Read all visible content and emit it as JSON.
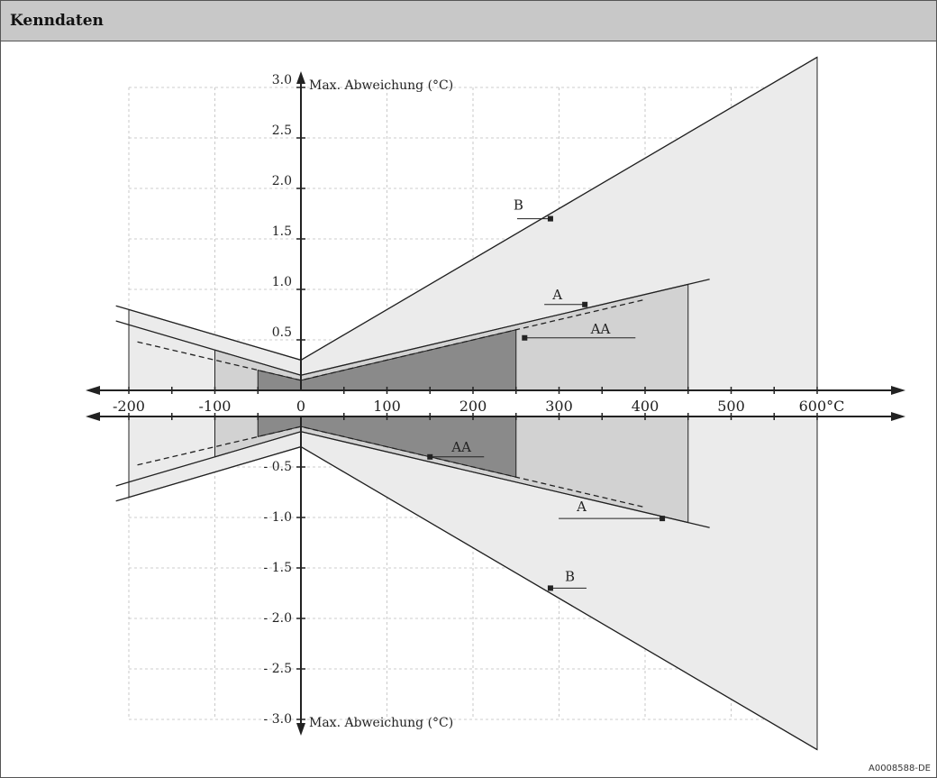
{
  "header": {
    "title": "Kenndaten"
  },
  "figure_id": "A0008588-DE",
  "chart_data": {
    "type": "area",
    "title": "",
    "xlabel": "°C",
    "ylabel_top": "Max. Abweichung (°C)",
    "ylabel_bottom": "Max. Abweichung (°C)",
    "x_range": [
      -200,
      600
    ],
    "y_range": [
      -3.0,
      3.0
    ],
    "grid": true,
    "x_ticks": [
      -200,
      -100,
      0,
      100,
      200,
      300,
      400,
      500,
      600
    ],
    "x_tick_labels": [
      "-200",
      "-100",
      "0",
      "100",
      "200",
      "300",
      "400",
      "500",
      "600°C"
    ],
    "y_ticks_top": [
      0.5,
      1.0,
      1.5,
      2.0,
      2.5,
      3.0
    ],
    "y_tick_labels_top": [
      "0.5",
      "1.0",
      "1.5",
      "2.0",
      "2.5",
      "3.0"
    ],
    "y_ticks_bottom": [
      -0.5,
      -1.0,
      -1.5,
      -2.0,
      -2.5,
      -3.0
    ],
    "y_tick_labels_bottom": [
      "- 0.5",
      "- 1.0",
      "- 1.5",
      "- 2.0",
      "- 2.5",
      "- 3.0"
    ],
    "series": [
      {
        "name": "B",
        "upper": [
          [
            -200,
            0.8
          ],
          [
            0,
            0.3
          ],
          [
            600,
            3.3
          ]
        ],
        "lower": [
          [
            -200,
            -0.8
          ],
          [
            0,
            -0.3
          ],
          [
            600,
            -3.3
          ]
        ],
        "range": [
          -200,
          600
        ],
        "label_value": [
          290,
          1.7
        ],
        "label_value_neg": [
          290,
          -1.7
        ],
        "fill": "#ebebeb"
      },
      {
        "name": "A",
        "upper": [
          [
            -200,
            0.65
          ],
          [
            0,
            0.15
          ],
          [
            450,
            1.05
          ]
        ],
        "lower": [
          [
            -200,
            -0.65
          ],
          [
            0,
            -0.15
          ],
          [
            450,
            -1.05
          ]
        ],
        "range": [
          -100,
          450
        ],
        "label_value": [
          330,
          0.85
        ],
        "label_value_neg": [
          420,
          -1.01
        ],
        "fill": "#d2d2d2"
      },
      {
        "name": "AA",
        "upper": [
          [
            -200,
            0.5
          ],
          [
            0,
            0.1
          ],
          [
            400,
            0.9
          ]
        ],
        "lower": [
          [
            -200,
            -0.5
          ],
          [
            0,
            -0.1
          ],
          [
            400,
            -0.9
          ]
        ],
        "range": [
          -50,
          250
        ],
        "label_value": [
          260,
          0.52
        ],
        "label_value_neg": [
          150,
          -0.4
        ],
        "fill": "#8a8a8a"
      }
    ]
  }
}
